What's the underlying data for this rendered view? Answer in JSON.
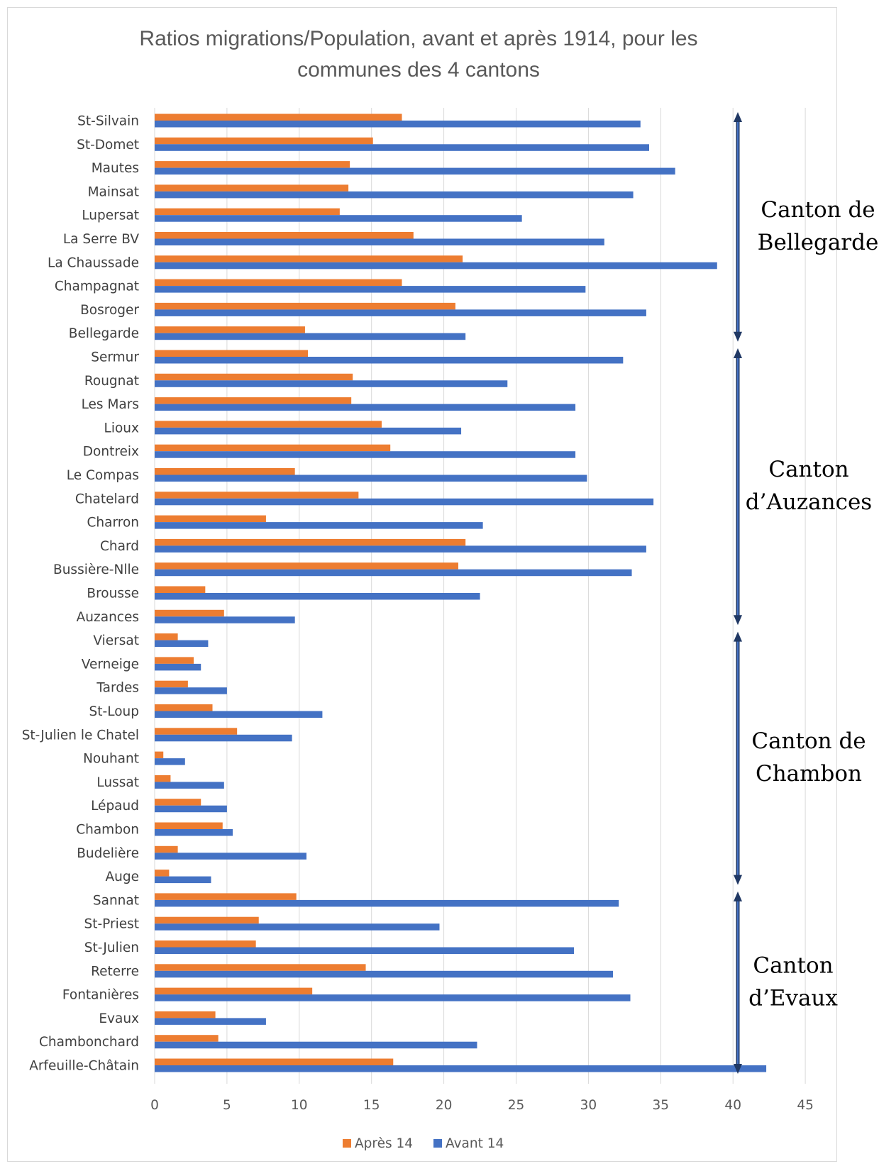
{
  "chart_data": {
    "type": "bar",
    "orientation": "horizontal",
    "title_lines": [
      "Ratios migrations/Population, avant et après 1914, pour les",
      "communes des 4 cantons"
    ],
    "categories": [
      "St-Silvain",
      "St-Domet",
      "Mautes",
      "Mainsat",
      "Lupersat",
      "La Serre BV",
      "La Chaussade",
      "Champagnat",
      "Bosroger",
      "Bellegarde",
      "Sermur",
      "Rougnat",
      "Les Mars",
      "Lioux",
      "Dontreix",
      "Le Compas",
      "Chatelard",
      "Charron",
      "Chard",
      "Bussière-Nlle",
      "Brousse",
      "Auzances",
      "Viersat",
      "Verneige",
      "Tardes",
      "St-Loup",
      "St-Julien le Chatel",
      "Nouhant",
      "Lussat",
      "Lépaud",
      "Chambon",
      "Budelière",
      "Auge",
      "Sannat",
      "St-Priest",
      "St-Julien",
      "Reterre",
      "Fontanières",
      "Evaux",
      "Chambonchard",
      "Arfeuille-Châtain"
    ],
    "series": [
      {
        "name": "Après 14",
        "color": "#ED7D31",
        "values": [
          17.1,
          15.1,
          13.5,
          13.4,
          12.8,
          17.9,
          21.3,
          17.1,
          20.8,
          10.4,
          10.6,
          13.7,
          13.6,
          15.7,
          16.3,
          9.7,
          14.1,
          7.7,
          21.5,
          21.0,
          3.5,
          4.8,
          1.6,
          2.7,
          2.3,
          4.0,
          5.7,
          0.6,
          1.1,
          3.2,
          4.7,
          1.6,
          1.0,
          9.8,
          7.2,
          7.0,
          14.6,
          10.9,
          4.2,
          4.4,
          16.5
        ]
      },
      {
        "name": "Avant 14",
        "color": "#4472C4",
        "values": [
          33.6,
          34.2,
          36.0,
          33.1,
          25.4,
          31.1,
          38.9,
          29.8,
          34.0,
          21.5,
          32.4,
          24.4,
          29.1,
          21.2,
          29.1,
          29.9,
          34.5,
          22.7,
          34.0,
          33.0,
          22.5,
          9.7,
          3.7,
          3.2,
          5.0,
          11.6,
          9.5,
          2.1,
          4.8,
          5.0,
          5.4,
          10.5,
          3.9,
          32.1,
          19.7,
          29.0,
          31.7,
          32.9,
          7.7,
          22.3,
          42.3
        ]
      }
    ],
    "xlim": [
      0,
      45
    ],
    "xticks": [
      "0",
      "5",
      "10",
      "15",
      "20",
      "25",
      "30",
      "35",
      "40",
      "45"
    ],
    "grid": "vertical",
    "legend_position": "bottom",
    "annotations": [
      {
        "lines": [
          "Canton de",
          "Bellegarde"
        ],
        "from_category": "St-Silvain",
        "to_category": "Bellegarde"
      },
      {
        "lines": [
          "Canton",
          "d’Auzances"
        ],
        "from_category": "Sermur",
        "to_category": "Auzances"
      },
      {
        "lines": [
          "Canton de",
          "Chambon"
        ],
        "from_category": "Viersat",
        "to_category": "Auge"
      },
      {
        "lines": [
          "Canton",
          "d’Evaux"
        ],
        "from_category": "Sannat",
        "to_category": "Arfeuille-Châtain"
      }
    ],
    "bracket_color": "#203864"
  }
}
